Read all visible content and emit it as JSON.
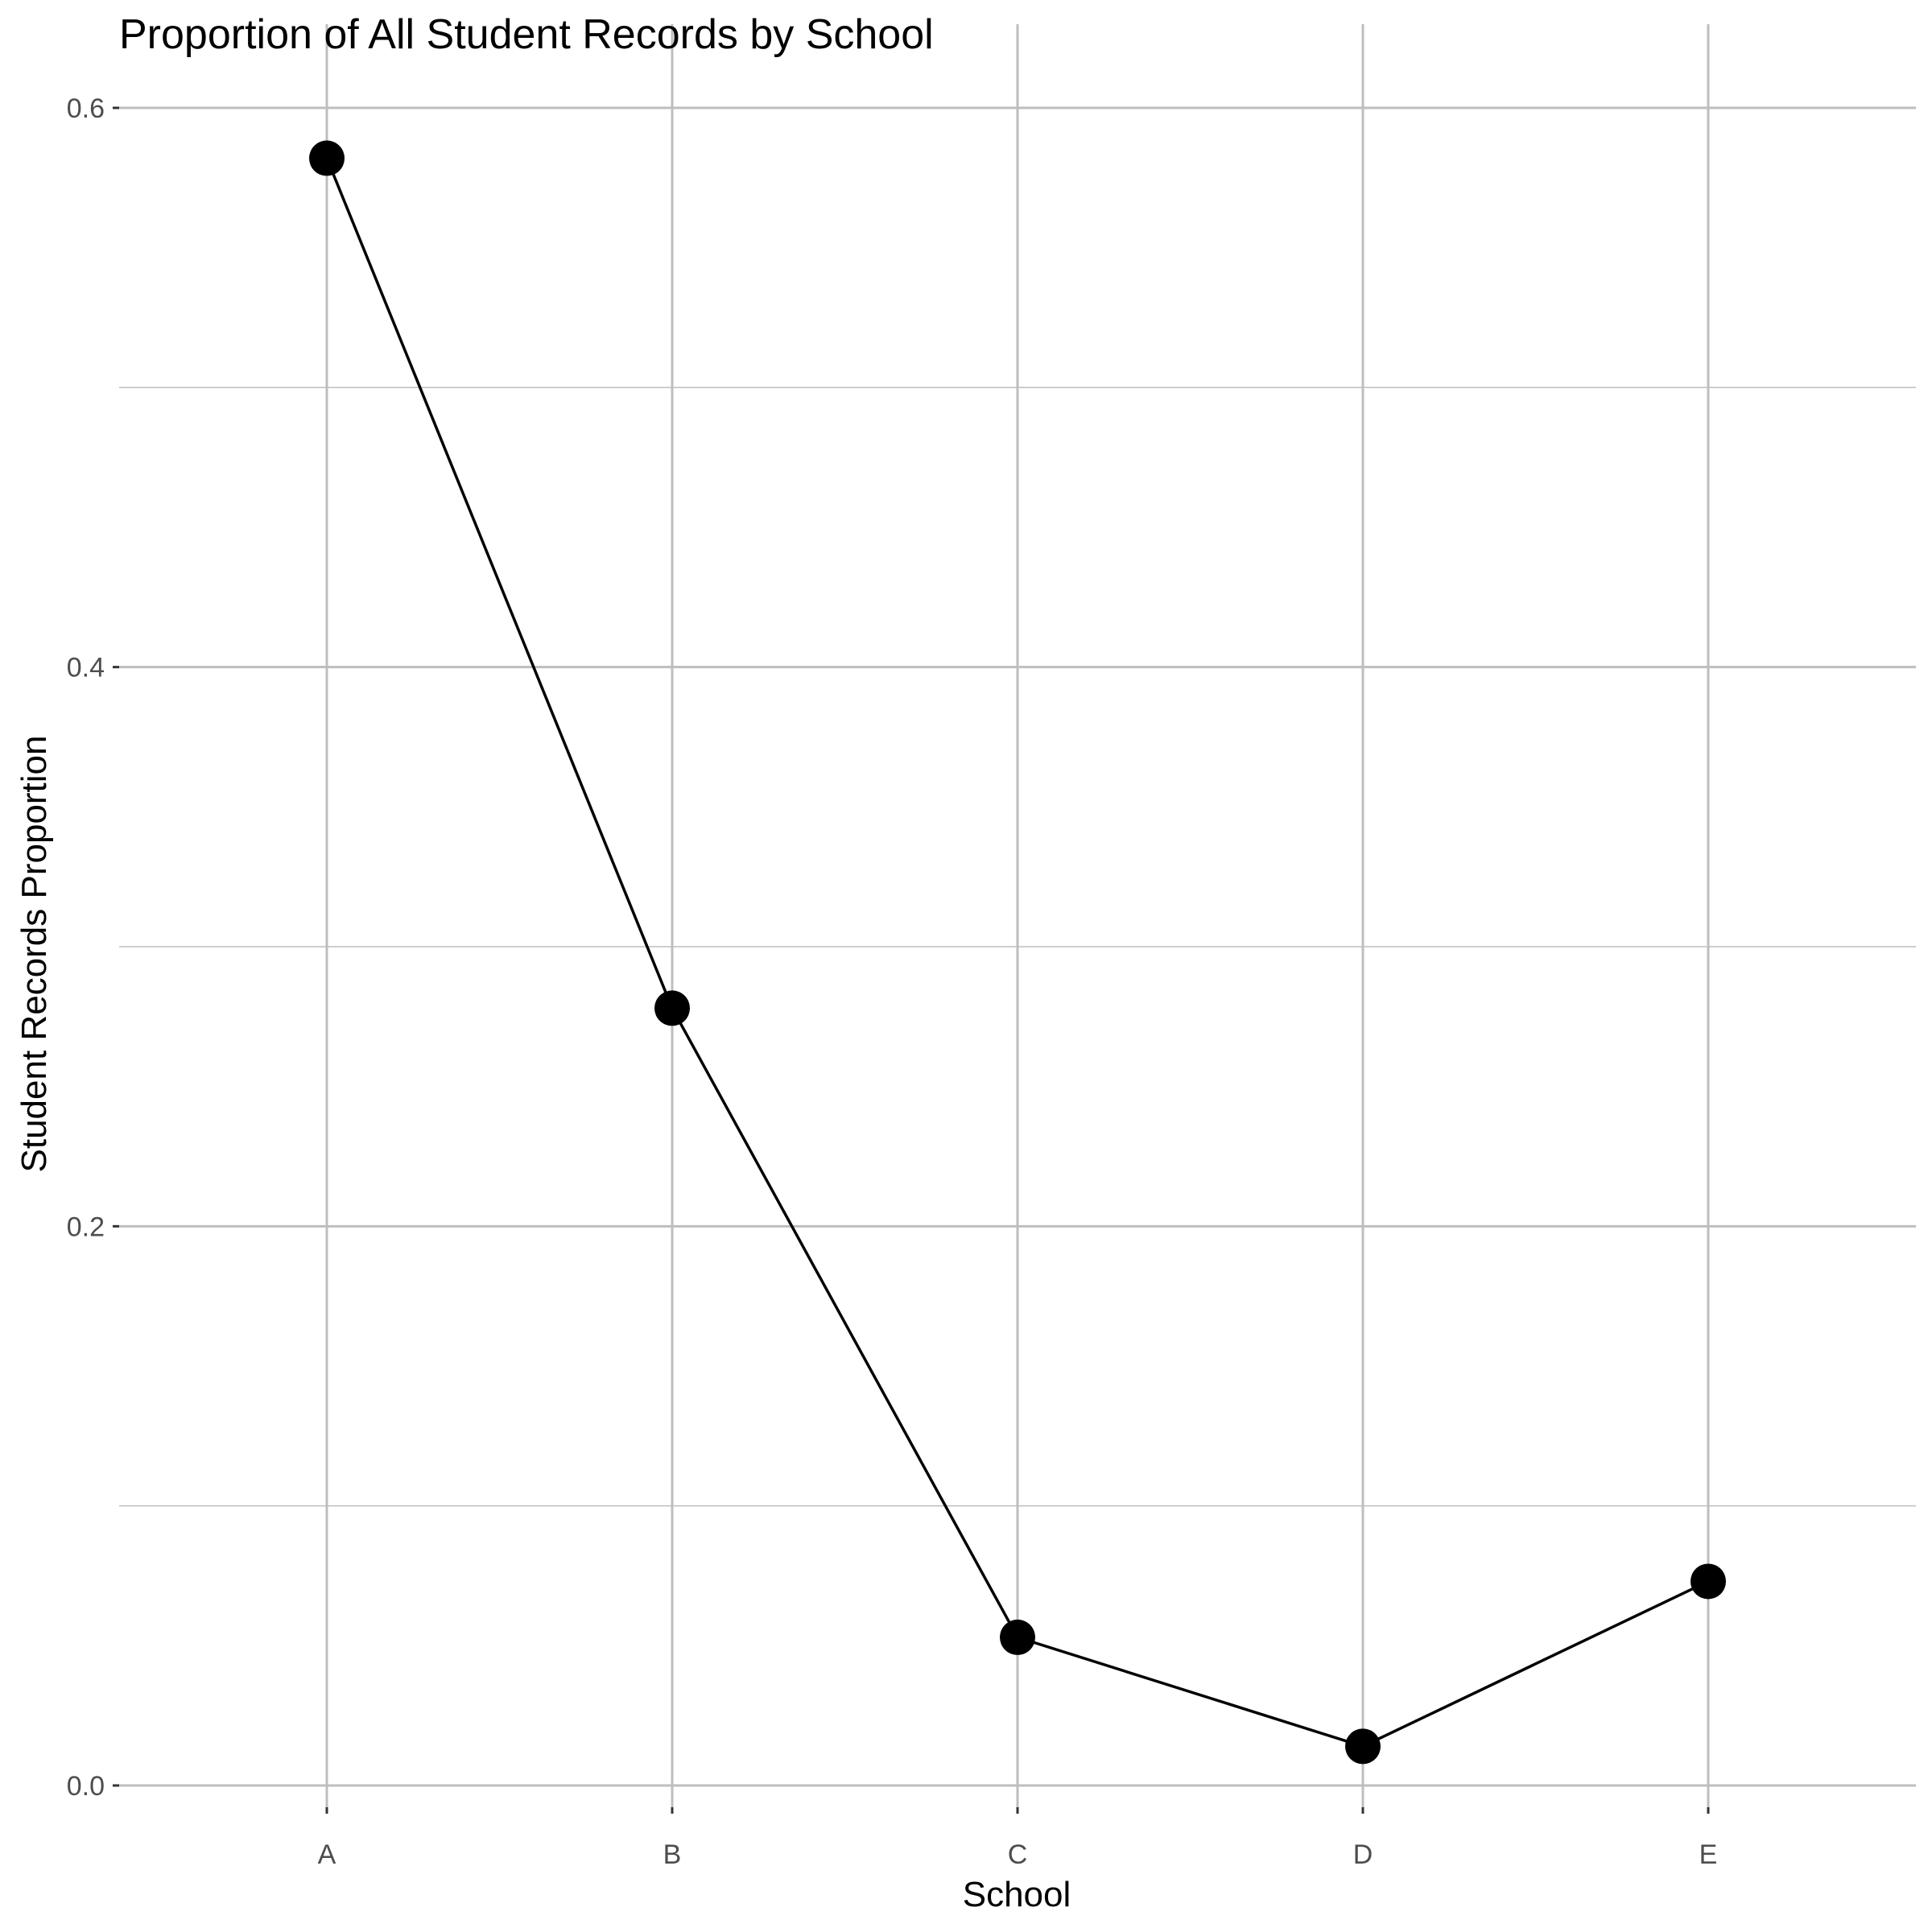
{
  "chart_data": {
    "type": "line",
    "title": "Proportion of All Student Records by School",
    "xlabel": "School",
    "ylabel": "Student Records Proportion",
    "categories": [
      "A",
      "B",
      "C",
      "D",
      "E"
    ],
    "values": [
      0.582,
      0.278,
      0.053,
      0.014,
      0.073
    ],
    "y_ticks": [
      "0.0",
      "0.2",
      "0.4",
      "0.6"
    ],
    "ylim": [
      0,
      0.6
    ],
    "grid": true,
    "colors": {
      "line": "#000000",
      "point": "#000000",
      "grid": "#bebebe",
      "background": "#ffffff"
    }
  }
}
